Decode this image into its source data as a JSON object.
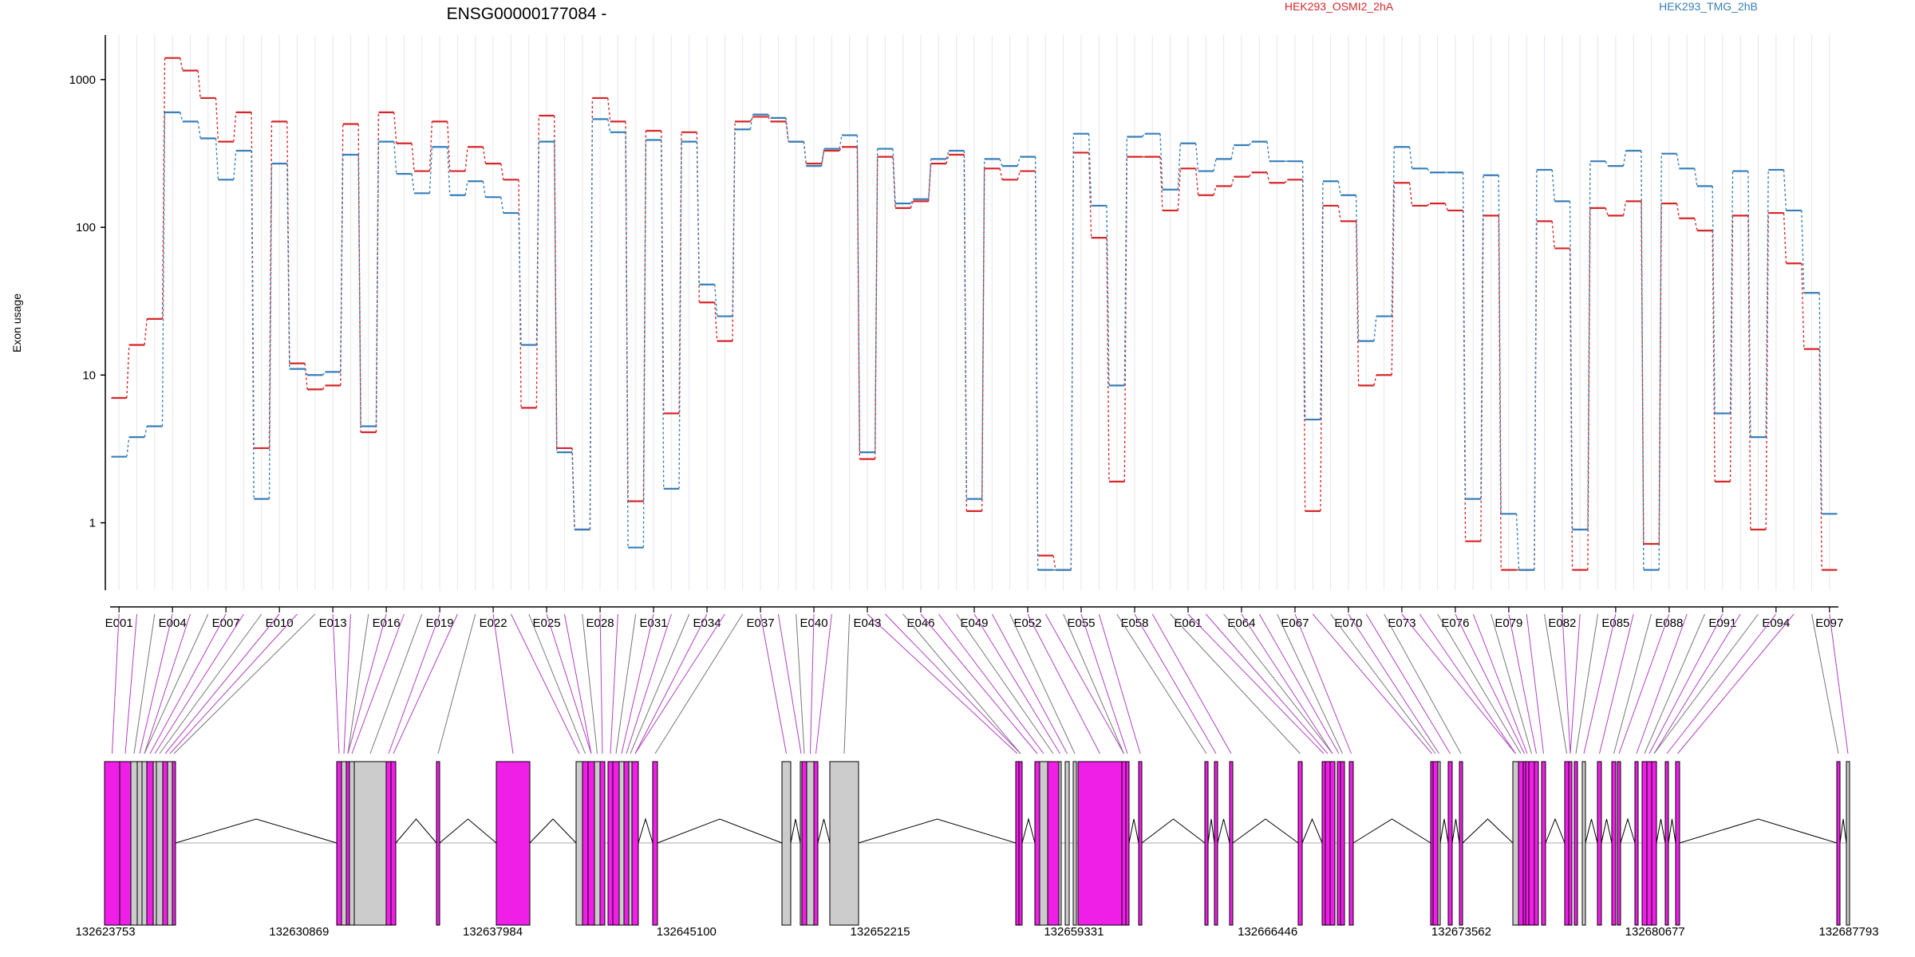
{
  "chart_data": {
    "type": "line",
    "title": "ENSG00000177084 -",
    "ylabel": "Exon usage",
    "yscale": "log",
    "ylim": [
      0.35,
      2000
    ],
    "yticks": [
      {
        "value": 1,
        "label": "1"
      },
      {
        "value": 10,
        "label": "10"
      },
      {
        "value": 100,
        "label": "100"
      },
      {
        "value": 1000,
        "label": "1000"
      }
    ],
    "exons": [
      "E001",
      "E002",
      "E003",
      "E004",
      "E005",
      "E006",
      "E007",
      "E008",
      "E009",
      "E010",
      "E011",
      "E012",
      "E013",
      "E014",
      "E015",
      "E016",
      "E017",
      "E018",
      "E019",
      "E020",
      "E021",
      "E022",
      "E023",
      "E024",
      "E025",
      "E026",
      "E027",
      "E028",
      "E029",
      "E030",
      "E031",
      "E032",
      "E033",
      "E034",
      "E035",
      "E036",
      "E037",
      "E038",
      "E039",
      "E040",
      "E041",
      "E042",
      "E043",
      "E044",
      "E045",
      "E046",
      "E047",
      "E048",
      "E049",
      "E050",
      "E051",
      "E052",
      "E053",
      "E054",
      "E055",
      "E056",
      "E057",
      "E058",
      "E059",
      "E060",
      "E061",
      "E062",
      "E063",
      "E064",
      "E065",
      "E066",
      "E067",
      "E068",
      "E069",
      "E070",
      "E071",
      "E072",
      "E073",
      "E074",
      "E075",
      "E076",
      "E077",
      "E078",
      "E079",
      "E080",
      "E081",
      "E082",
      "E083",
      "E084",
      "E085",
      "E086",
      "E087",
      "E088",
      "E089",
      "E090",
      "E091",
      "E092",
      "E093",
      "E094",
      "E095",
      "E096",
      "E097"
    ],
    "x_tick_labels": [
      "E001",
      "E004",
      "E007",
      "E010",
      "E013",
      "E016",
      "E019",
      "E022",
      "E025",
      "E028",
      "E031",
      "E034",
      "E037",
      "E040",
      "E043",
      "E046",
      "E049",
      "E052",
      "E055",
      "E058",
      "E061",
      "E064",
      "E067",
      "E070",
      "E073",
      "E076",
      "E079",
      "E082",
      "E085",
      "E088",
      "E091",
      "E094",
      "E097"
    ],
    "series": [
      {
        "name": "HEK293_OSMI2_2hA",
        "color": "#d62728",
        "values": [
          7,
          16,
          24,
          1400,
          1150,
          750,
          380,
          600,
          3.2,
          520,
          12,
          8,
          8.5,
          500,
          4.1,
          600,
          370,
          240,
          520,
          240,
          350,
          270,
          210,
          6,
          570,
          3.2,
          0.9,
          750,
          520,
          1.4,
          450,
          5.5,
          440,
          31,
          17,
          520,
          560,
          520,
          380,
          270,
          330,
          350,
          2.7,
          300,
          135,
          150,
          270,
          310,
          1.2,
          250,
          210,
          240,
          0.6,
          0.48,
          320,
          85,
          1.9,
          300,
          300,
          130,
          250,
          165,
          190,
          220,
          235,
          200,
          210,
          1.2,
          140,
          110,
          8.5,
          10,
          200,
          140,
          145,
          130,
          0.75,
          120,
          0.48,
          0.48,
          110,
          72,
          0.48,
          135,
          120,
          150,
          0.72,
          145,
          115,
          95,
          1.9,
          120,
          0.9,
          125,
          57,
          15,
          0.48
        ]
      },
      {
        "name": "HEK293_TMG_2hB",
        "color": "#377eb8",
        "values": [
          2.8,
          3.8,
          4.5,
          600,
          520,
          400,
          210,
          330,
          1.45,
          270,
          11,
          10,
          10.5,
          310,
          4.5,
          380,
          230,
          170,
          350,
          165,
          205,
          160,
          125,
          16,
          380,
          3,
          0.9,
          540,
          440,
          0.68,
          390,
          1.7,
          380,
          41,
          25,
          460,
          580,
          550,
          380,
          260,
          340,
          420,
          3,
          340,
          145,
          155,
          290,
          330,
          1.45,
          290,
          260,
          300,
          0.48,
          0.48,
          430,
          140,
          8.5,
          410,
          430,
          180,
          370,
          240,
          290,
          360,
          380,
          280,
          280,
          5,
          205,
          165,
          17,
          25,
          350,
          250,
          235,
          235,
          1.45,
          225,
          1.15,
          0.48,
          245,
          150,
          0.9,
          280,
          260,
          330,
          0.48,
          315,
          250,
          190,
          5.5,
          240,
          3.8,
          245,
          130,
          36,
          1.15
        ]
      }
    ],
    "genomic_axis": {
      "tick_labels": [
        "132623753",
        "132630869",
        "132637984",
        "132645100",
        "132652215",
        "132659331",
        "132666446",
        "132673562",
        "132680677",
        "132687793"
      ],
      "range": [
        132623753,
        132687793
      ]
    }
  }
}
